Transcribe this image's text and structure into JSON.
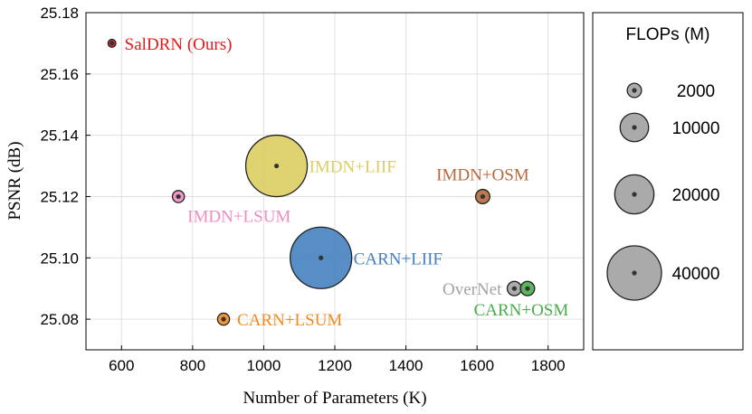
{
  "chart_data": {
    "type": "scatter",
    "xlabel": "Number of Parameters (K)",
    "ylabel": "PSNR (dB)",
    "xlim": [
      500,
      1900
    ],
    "ylim": [
      25.07,
      25.18
    ],
    "xticks": [
      "600",
      "800",
      "1000",
      "1200",
      "1400",
      "1600",
      "1800"
    ],
    "yticks": [
      "25.08",
      "25.10",
      "25.12",
      "25.14",
      "25.16",
      "25.18"
    ],
    "grid": true,
    "points": [
      {
        "name": "SalDRN (Ours)",
        "x": 573,
        "y": 25.17,
        "flops": 400,
        "color": "#e31a1c"
      },
      {
        "name": "IMDN+LIIF",
        "x": 1036,
        "y": 25.13,
        "flops": 52000,
        "color": "#dccd60"
      },
      {
        "name": "IMDN+LSUM",
        "x": 760,
        "y": 25.12,
        "flops": 1300,
        "color": "#f08cc0"
      },
      {
        "name": "IMDN+OSM",
        "x": 1616,
        "y": 25.12,
        "flops": 2000,
        "color": "#b5693d"
      },
      {
        "name": "CARN+LIIF",
        "x": 1161,
        "y": 25.1,
        "flops": 52000,
        "color": "#4682c0"
      },
      {
        "name": "OverNet",
        "x": 1705,
        "y": 25.09,
        "flops": 2000,
        "color": "#a3a3a3"
      },
      {
        "name": "CARN+OSM",
        "x": 1742,
        "y": 25.09,
        "flops": 2000,
        "color": "#4cab4c"
      },
      {
        "name": "CARN+LSUM",
        "x": 887,
        "y": 25.08,
        "flops": 1300,
        "color": "#f28a22"
      }
    ],
    "legend": {
      "title": "FLOPs (M)",
      "placement": "right",
      "entries": [
        {
          "label": "2000",
          "flops": 2000
        },
        {
          "label": "10000",
          "flops": 10000
        },
        {
          "label": "20000",
          "flops": 20000
        },
        {
          "label": "40000",
          "flops": 40000
        }
      ]
    }
  }
}
